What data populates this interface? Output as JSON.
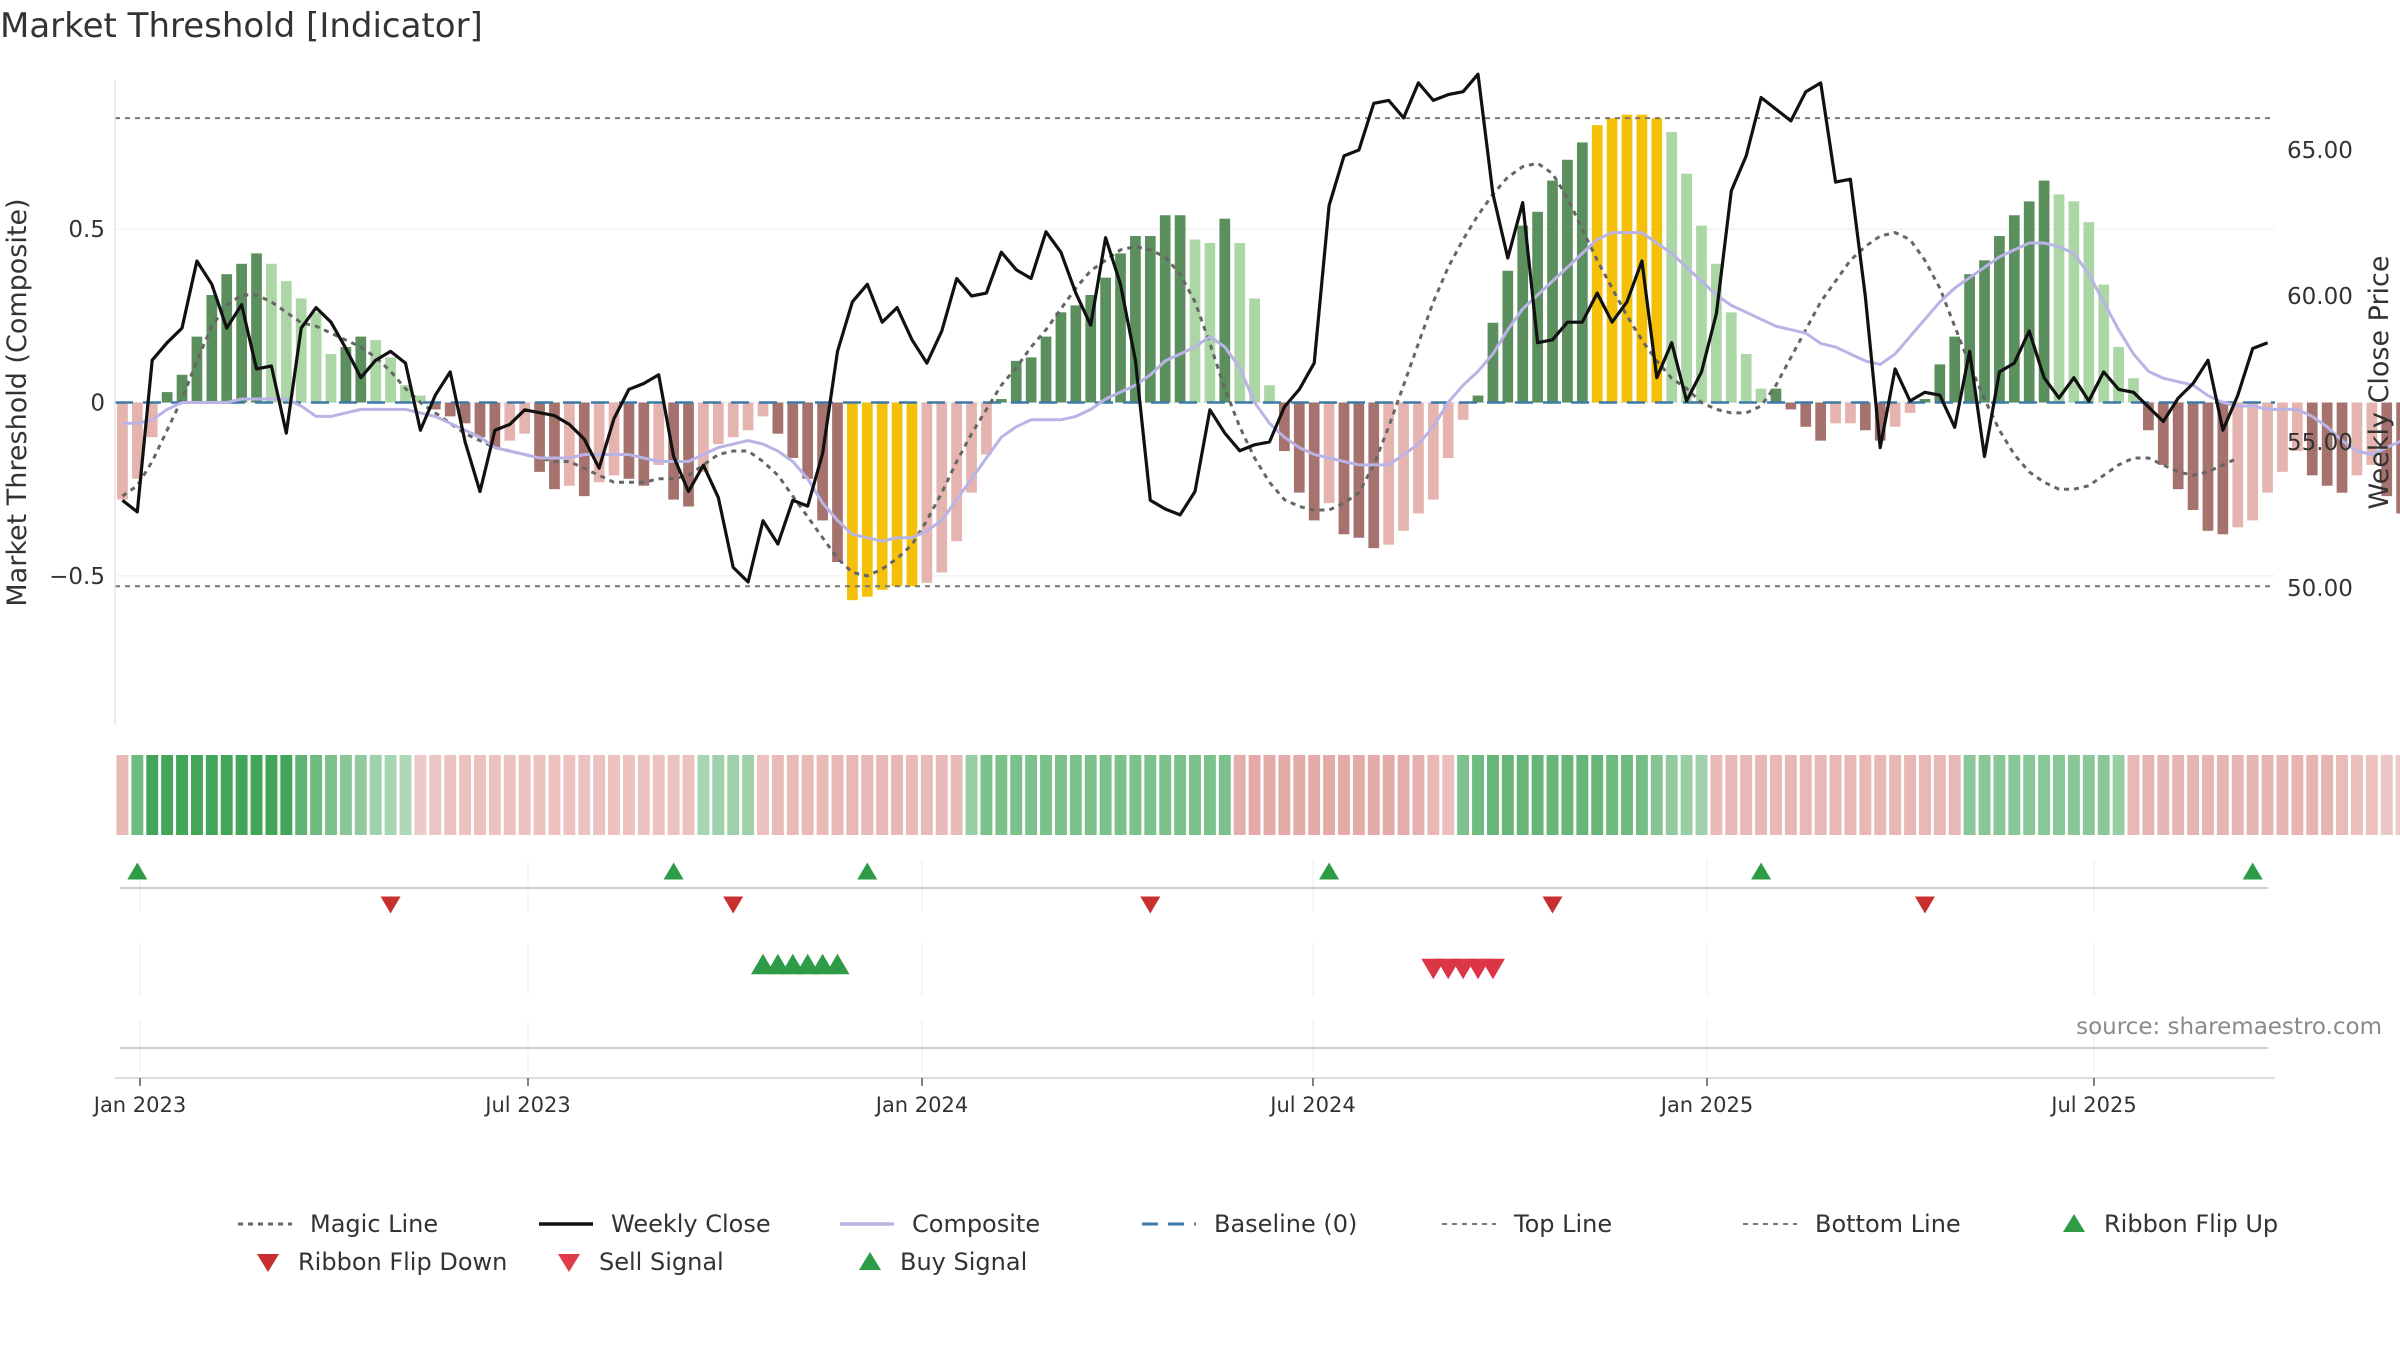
{
  "title": "Market Threshold [Indicator]",
  "source": "source: sharemaestro.com",
  "colors": {
    "bar_strong_up": "#5b8f5e",
    "bar_weak_up": "#acd6a6",
    "bar_strong_down": "#a5726d",
    "bar_weak_down": "#e6b4ae",
    "bar_extreme": "#f5c108",
    "close": "#111111",
    "composite": "#b9b3e6",
    "magic": "#666666",
    "baseline": "#3d7aa8",
    "threshold_line": "#777777",
    "buy": "#2e9b47",
    "sell": "#dc3545"
  },
  "chart_data": {
    "type": "bar",
    "x_ticks": [
      "Jan 2023",
      "Jul 2023",
      "Jan 2024",
      "Jul 2024",
      "Jan 2025",
      "Jul 2025"
    ],
    "left_axis": {
      "label": "Market Threshold (Composite)",
      "ticks": [
        "0.5",
        "0",
        "−0.5"
      ],
      "range": [
        -0.93,
        0.93
      ]
    },
    "right_axis": {
      "label": "Weekly Close Price",
      "ticks": [
        "65.00",
        "60.00",
        "55.00",
        "50.00"
      ],
      "range": [
        45.3,
        67.4
      ]
    },
    "top_line": 0.82,
    "bottom_line": -0.53,
    "baseline": 0,
    "start_week": "2022-12-26",
    "weeks": 145,
    "composite_bars": [
      -0.28,
      -0.22,
      -0.1,
      0.03,
      0.08,
      0.19,
      0.31,
      0.37,
      0.4,
      0.43,
      0.4,
      0.35,
      0.3,
      0.26,
      0.14,
      0.16,
      0.19,
      0.18,
      0.13,
      0.05,
      0.02,
      -0.02,
      -0.04,
      -0.06,
      -0.1,
      -0.13,
      -0.11,
      -0.09,
      -0.2,
      -0.25,
      -0.24,
      -0.27,
      -0.23,
      -0.21,
      -0.22,
      -0.24,
      -0.18,
      -0.28,
      -0.3,
      -0.2,
      -0.12,
      -0.1,
      -0.08,
      -0.04,
      -0.09,
      -0.16,
      -0.22,
      -0.34,
      -0.46,
      -0.57,
      -0.56,
      -0.54,
      -0.53,
      -0.53,
      -0.52,
      -0.49,
      -0.4,
      -0.26,
      -0.15,
      0.01,
      0.12,
      0.13,
      0.19,
      0.26,
      0.28,
      0.31,
      0.36,
      0.43,
      0.48,
      0.48,
      0.54,
      0.54,
      0.47,
      0.46,
      0.53,
      0.46,
      0.3,
      0.05,
      -0.14,
      -0.26,
      -0.34,
      -0.29,
      -0.38,
      -0.39,
      -0.42,
      -0.41,
      -0.37,
      -0.32,
      -0.28,
      -0.16,
      -0.05,
      0.02,
      0.23,
      0.38,
      0.51,
      0.55,
      0.64,
      0.7,
      0.75,
      0.8,
      0.82,
      0.83,
      0.83,
      0.82,
      0.78,
      0.66,
      0.51,
      0.4,
      0.26,
      0.14,
      0.04,
      0.04,
      -0.02,
      -0.07,
      -0.11,
      -0.06,
      -0.06,
      -0.08,
      -0.11,
      -0.07,
      -0.03,
      0.01,
      0.11,
      0.19,
      0.37,
      0.41,
      0.48,
      0.54,
      0.58,
      0.64,
      0.6,
      0.58,
      0.52,
      0.34,
      0.16,
      0.07,
      -0.08,
      -0.18,
      -0.25,
      -0.31,
      -0.37,
      -0.38,
      -0.36,
      -0.34,
      -0.26,
      -0.2,
      -0.14,
      -0.21,
      -0.24,
      -0.26,
      -0.21,
      -0.18,
      -0.27,
      -0.32,
      -0.39,
      -0.24,
      -0.15,
      -0.11,
      -0.08,
      -0.06
    ],
    "composite_line": [
      -0.06,
      -0.06,
      -0.05,
      -0.02,
      0.0,
      0.0,
      0.0,
      0.0,
      0.01,
      0.01,
      0.01,
      0.01,
      -0.01,
      -0.04,
      -0.04,
      -0.03,
      -0.02,
      -0.02,
      -0.02,
      -0.02,
      -0.03,
      -0.04,
      -0.06,
      -0.08,
      -0.1,
      -0.13,
      -0.14,
      -0.15,
      -0.16,
      -0.16,
      -0.16,
      -0.15,
      -0.15,
      -0.15,
      -0.15,
      -0.16,
      -0.17,
      -0.17,
      -0.17,
      -0.15,
      -0.13,
      -0.12,
      -0.11,
      -0.12,
      -0.14,
      -0.17,
      -0.22,
      -0.29,
      -0.34,
      -0.38,
      -0.39,
      -0.4,
      -0.39,
      -0.39,
      -0.37,
      -0.34,
      -0.28,
      -0.22,
      -0.16,
      -0.1,
      -0.07,
      -0.05,
      -0.05,
      -0.05,
      -0.04,
      -0.02,
      0.01,
      0.03,
      0.05,
      0.08,
      0.12,
      0.14,
      0.16,
      0.19,
      0.16,
      0.1,
      0.0,
      -0.06,
      -0.1,
      -0.13,
      -0.15,
      -0.16,
      -0.17,
      -0.18,
      -0.18,
      -0.18,
      -0.15,
      -0.12,
      -0.07,
      0.0,
      0.05,
      0.09,
      0.14,
      0.21,
      0.27,
      0.31,
      0.35,
      0.39,
      0.43,
      0.47,
      0.49,
      0.49,
      0.49,
      0.46,
      0.43,
      0.39,
      0.35,
      0.31,
      0.28,
      0.26,
      0.24,
      0.22,
      0.21,
      0.2,
      0.17,
      0.16,
      0.14,
      0.12,
      0.11,
      0.14,
      0.19,
      0.24,
      0.29,
      0.33,
      0.36,
      0.39,
      0.42,
      0.44,
      0.46,
      0.46,
      0.45,
      0.43,
      0.37,
      0.29,
      0.21,
      0.14,
      0.09,
      0.07,
      0.06,
      0.05,
      0.02,
      0.0,
      -0.01,
      -0.01,
      -0.02,
      -0.02,
      -0.02,
      -0.04,
      -0.07,
      -0.11,
      -0.14,
      -0.15,
      -0.13,
      -0.11,
      -0.08,
      -0.04,
      -0.02
    ],
    "magic_line": [
      -0.27,
      -0.24,
      -0.17,
      -0.08,
      0.01,
      0.12,
      0.22,
      0.28,
      0.31,
      0.31,
      0.29,
      0.26,
      0.23,
      0.22,
      0.2,
      0.18,
      0.16,
      0.13,
      0.09,
      0.04,
      0.0,
      -0.03,
      -0.06,
      -0.09,
      -0.11,
      -0.13,
      -0.14,
      -0.15,
      -0.16,
      -0.17,
      -0.17,
      -0.19,
      -0.21,
      -0.23,
      -0.23,
      -0.23,
      -0.22,
      -0.22,
      -0.21,
      -0.18,
      -0.15,
      -0.14,
      -0.14,
      -0.17,
      -0.21,
      -0.27,
      -0.33,
      -0.39,
      -0.45,
      -0.49,
      -0.5,
      -0.48,
      -0.45,
      -0.41,
      -0.34,
      -0.26,
      -0.17,
      -0.09,
      -0.02,
      0.05,
      0.1,
      0.16,
      0.21,
      0.27,
      0.33,
      0.38,
      0.41,
      0.44,
      0.45,
      0.44,
      0.42,
      0.37,
      0.29,
      0.17,
      0.04,
      -0.07,
      -0.16,
      -0.23,
      -0.28,
      -0.3,
      -0.31,
      -0.31,
      -0.29,
      -0.26,
      -0.18,
      -0.07,
      0.05,
      0.17,
      0.29,
      0.39,
      0.47,
      0.54,
      0.6,
      0.65,
      0.68,
      0.69,
      0.66,
      0.59,
      0.5,
      0.41,
      0.33,
      0.25,
      0.18,
      0.12,
      0.07,
      0.04,
      0.0,
      -0.02,
      -0.03,
      -0.03,
      -0.01,
      0.05,
      0.13,
      0.21,
      0.29,
      0.35,
      0.41,
      0.45,
      0.48,
      0.49,
      0.47,
      0.41,
      0.33,
      0.22,
      0.11,
      0.01,
      -0.08,
      -0.15,
      -0.2,
      -0.23,
      -0.25,
      -0.25,
      -0.24,
      -0.21,
      -0.18,
      -0.16,
      -0.16,
      -0.18,
      -0.2,
      -0.21,
      -0.2,
      -0.18,
      -0.16
    ],
    "weekly_close": [
      53.0,
      52.6,
      57.8,
      58.4,
      58.9,
      61.2,
      60.4,
      58.9,
      59.7,
      57.5,
      57.6,
      55.3,
      58.9,
      59.6,
      59.1,
      58.2,
      57.2,
      57.8,
      58.1,
      57.7,
      55.4,
      56.6,
      57.4,
      55.0,
      53.3,
      55.4,
      55.6,
      56.1,
      56.0,
      55.9,
      55.6,
      55.1,
      54.1,
      55.8,
      56.8,
      57.0,
      57.3,
      54.5,
      53.3,
      54.2,
      53.1,
      50.7,
      50.2,
      52.3,
      51.5,
      53.0,
      52.8,
      54.6,
      58.1,
      59.8,
      60.4,
      59.1,
      59.6,
      58.5,
      57.7,
      58.8,
      60.6,
      60.0,
      60.1,
      61.5,
      60.9,
      60.6,
      62.2,
      61.5,
      60.1,
      59.0,
      62.0,
      60.4,
      57.8,
      53.0,
      52.7,
      52.5,
      53.3,
      56.1,
      55.3,
      54.7,
      54.9,
      55.0,
      56.2,
      56.8,
      57.7,
      63.1,
      64.8,
      65.0,
      66.6,
      66.7,
      66.1,
      67.3,
      66.7,
      66.9,
      67.0,
      67.6,
      63.5,
      61.3,
      63.2,
      58.4,
      58.5,
      59.1,
      59.1,
      60.1,
      59.1,
      59.8,
      61.2,
      57.2,
      58.4,
      56.4,
      57.4,
      59.4,
      63.6,
      64.8,
      66.8,
      66.4,
      66.0,
      67.0,
      67.3,
      63.9,
      64.0,
      60.0,
      54.8,
      57.5,
      56.4,
      56.7,
      56.6,
      55.5,
      58.1,
      54.5,
      57.4,
      57.7,
      58.8,
      57.2,
      56.5,
      57.2,
      56.4,
      57.4,
      56.8,
      56.7,
      56.2,
      55.7,
      56.5,
      57.0,
      57.8,
      55.4,
      56.6,
      58.2,
      58.4
    ]
  },
  "ribbon": {
    "values": [
      -0.5,
      0.7,
      1.0,
      1.0,
      1.0,
      1.0,
      1.0,
      1.0,
      1.0,
      1.0,
      1.0,
      1.0,
      0.8,
      0.7,
      0.6,
      0.5,
      0.45,
      0.35,
      0.3,
      0.25,
      -0.3,
      -0.35,
      -0.4,
      -0.4,
      -0.4,
      -0.4,
      -0.4,
      -0.4,
      -0.4,
      -0.4,
      -0.4,
      -0.4,
      -0.4,
      -0.4,
      -0.4,
      -0.4,
      -0.4,
      -0.4,
      -0.4,
      0.3,
      0.35,
      0.35,
      0.35,
      -0.4,
      -0.5,
      -0.5,
      -0.5,
      -0.5,
      -0.55,
      -0.55,
      -0.55,
      -0.55,
      -0.55,
      -0.5,
      -0.5,
      -0.5,
      -0.5,
      0.4,
      0.6,
      0.6,
      0.6,
      0.6,
      0.6,
      0.6,
      0.6,
      0.6,
      0.6,
      0.6,
      0.6,
      0.6,
      0.6,
      0.6,
      0.6,
      0.6,
      0.6,
      -0.7,
      -0.75,
      -0.75,
      -0.75,
      -0.75,
      -0.75,
      -0.75,
      -0.75,
      -0.75,
      -0.75,
      -0.75,
      -0.7,
      -0.65,
      -0.55,
      -0.45,
      0.6,
      0.7,
      0.75,
      0.75,
      0.75,
      0.75,
      0.75,
      0.75,
      0.75,
      0.75,
      0.7,
      0.7,
      0.65,
      0.55,
      0.45,
      0.4,
      0.35,
      -0.5,
      -0.55,
      -0.55,
      -0.55,
      -0.55,
      -0.55,
      -0.55,
      -0.55,
      -0.55,
      -0.55,
      -0.55,
      -0.55,
      -0.55,
      -0.55,
      -0.55,
      -0.55,
      -0.55,
      0.5,
      0.5,
      0.5,
      0.5,
      0.5,
      0.5,
      0.5,
      0.5,
      0.5,
      0.5,
      0.4,
      -0.55,
      -0.6,
      -0.6,
      -0.6,
      -0.6,
      -0.6,
      -0.6,
      -0.6,
      -0.6,
      -0.6,
      -0.6,
      -0.6,
      -0.6,
      -0.6,
      -0.5,
      -0.45,
      -0.4,
      -0.35,
      -0.3,
      -0.25,
      0.35
    ]
  },
  "signals": {
    "ribbon_flip_up_weeks": [
      1,
      37,
      50,
      81,
      110,
      143
    ],
    "ribbon_flip_down_weeks": [
      18,
      41,
      69,
      96,
      121
    ],
    "buy_signal_weeks": [
      43,
      44,
      45,
      46,
      47,
      48
    ],
    "sell_signal_weeks": [
      88,
      89,
      90,
      91,
      92
    ]
  },
  "legend": [
    {
      "label": "Magic Line",
      "kind": "dotted",
      "color": "#666666"
    },
    {
      "label": "Weekly Close",
      "kind": "solid",
      "color": "#111111"
    },
    {
      "label": "Composite",
      "kind": "solid-light",
      "color": "#b9b3e6"
    },
    {
      "label": "Baseline (0)",
      "kind": "dashed",
      "color": "#3d7aa8"
    },
    {
      "label": "Top Line",
      "kind": "dotted-thin",
      "color": "#777777"
    },
    {
      "label": "Bottom Line",
      "kind": "dotted-thin",
      "color": "#777777"
    },
    {
      "label": "Ribbon Flip Up",
      "kind": "tri-up",
      "color": "#2e9b47"
    },
    {
      "label": "Ribbon Flip Down",
      "kind": "tri-down",
      "color": "#c8302f"
    },
    {
      "label": "Sell Signal",
      "kind": "tri-down",
      "color": "#e23b4a"
    },
    {
      "label": "Buy Signal",
      "kind": "tri-up",
      "color": "#2e9b47"
    }
  ]
}
